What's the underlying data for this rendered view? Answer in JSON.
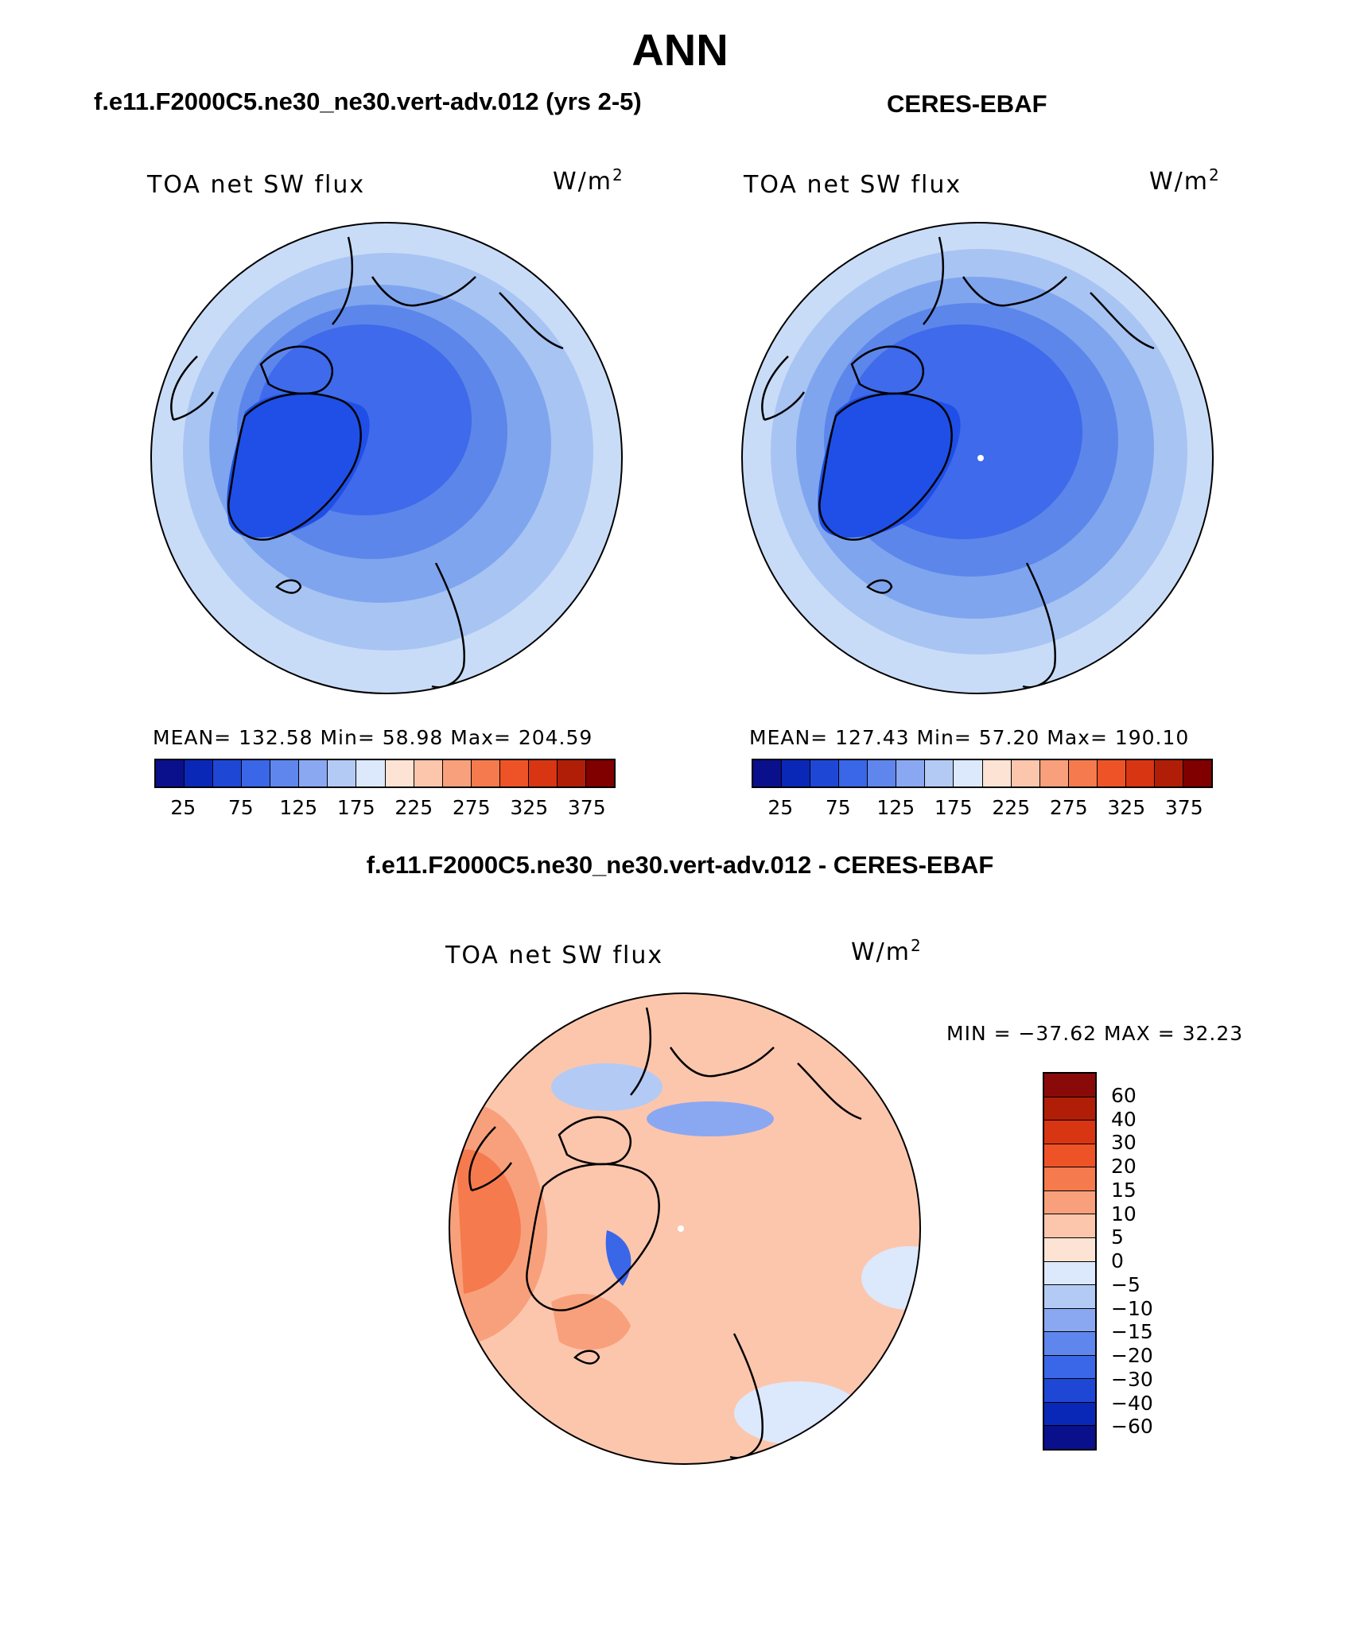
{
  "page_title": "ANN",
  "panels": [
    {
      "title": "f.e11.F2000C5.ne30_ne30.vert-adv.012 (yrs 2-5)",
      "left_label": "TOA net SW flux",
      "units_base": "W/m",
      "units_sup": "2",
      "stats": "MEAN= 132.58   Min=   58.98   Max= 204.59",
      "colorbar_ticks": [
        "25",
        "75",
        "125",
        "175",
        "225",
        "275",
        "325",
        "375"
      ],
      "map_colors": [
        "#c9dcf7",
        "#a8c4f3",
        "#7fa5ee",
        "#5c86ea",
        "#3e6aeb",
        "#1f4fe6"
      ]
    },
    {
      "title": "CERES-EBAF",
      "left_label": "TOA net SW flux",
      "units_base": "W/m",
      "units_sup": "2",
      "stats": "MEAN= 127.43   Min=   57.20   Max= 190.10",
      "colorbar_ticks": [
        "25",
        "75",
        "125",
        "175",
        "225",
        "275",
        "325",
        "375"
      ],
      "map_colors": [
        "#c9dcf7",
        "#a8c4f3",
        "#7fa5ee",
        "#5c86ea",
        "#3e6aeb",
        "#1f4fe6"
      ]
    }
  ],
  "colorbar_colors": [
    "#0a0f8c",
    "#0a28b8",
    "#1f47d6",
    "#3a66e8",
    "#5f86ec",
    "#8aa8f1",
    "#b3caf5",
    "#dce8fb",
    "#fde3d4",
    "#fcc6ad",
    "#f8a07c",
    "#f57a4d",
    "#ee5327",
    "#d83512",
    "#b01e08",
    "#800000"
  ],
  "difference": {
    "title": "f.e11.F2000C5.ne30_ne30.vert-adv.012 - CERES-EBAF",
    "left_label": "TOA net SW flux",
    "units_base": "W/m",
    "units_sup": "2",
    "minmax": "MIN = −37.62 MAX =   32.23",
    "colorbar_ticks": [
      "60",
      "40",
      "30",
      "20",
      "15",
      "10",
      "5",
      "0",
      "−5",
      "−10",
      "−15",
      "−20",
      "−30",
      "−40",
      "−60"
    ],
    "colorbar_colors": [
      "#8a0a0a",
      "#b01e08",
      "#d83512",
      "#ee5327",
      "#f57a4d",
      "#f8a07c",
      "#fcc6ad",
      "#fde3d4",
      "#dce8fb",
      "#b3caf5",
      "#8aa8f1",
      "#5f86ec",
      "#3a66e8",
      "#1f47d6",
      "#0a28b8",
      "#0a0f8c"
    ],
    "map_colors": [
      "#fde3d4",
      "#fcc6ad",
      "#f8a07c",
      "#f57a4d",
      "#dce8fb",
      "#8aa8f1",
      "#3a66e8"
    ]
  }
}
